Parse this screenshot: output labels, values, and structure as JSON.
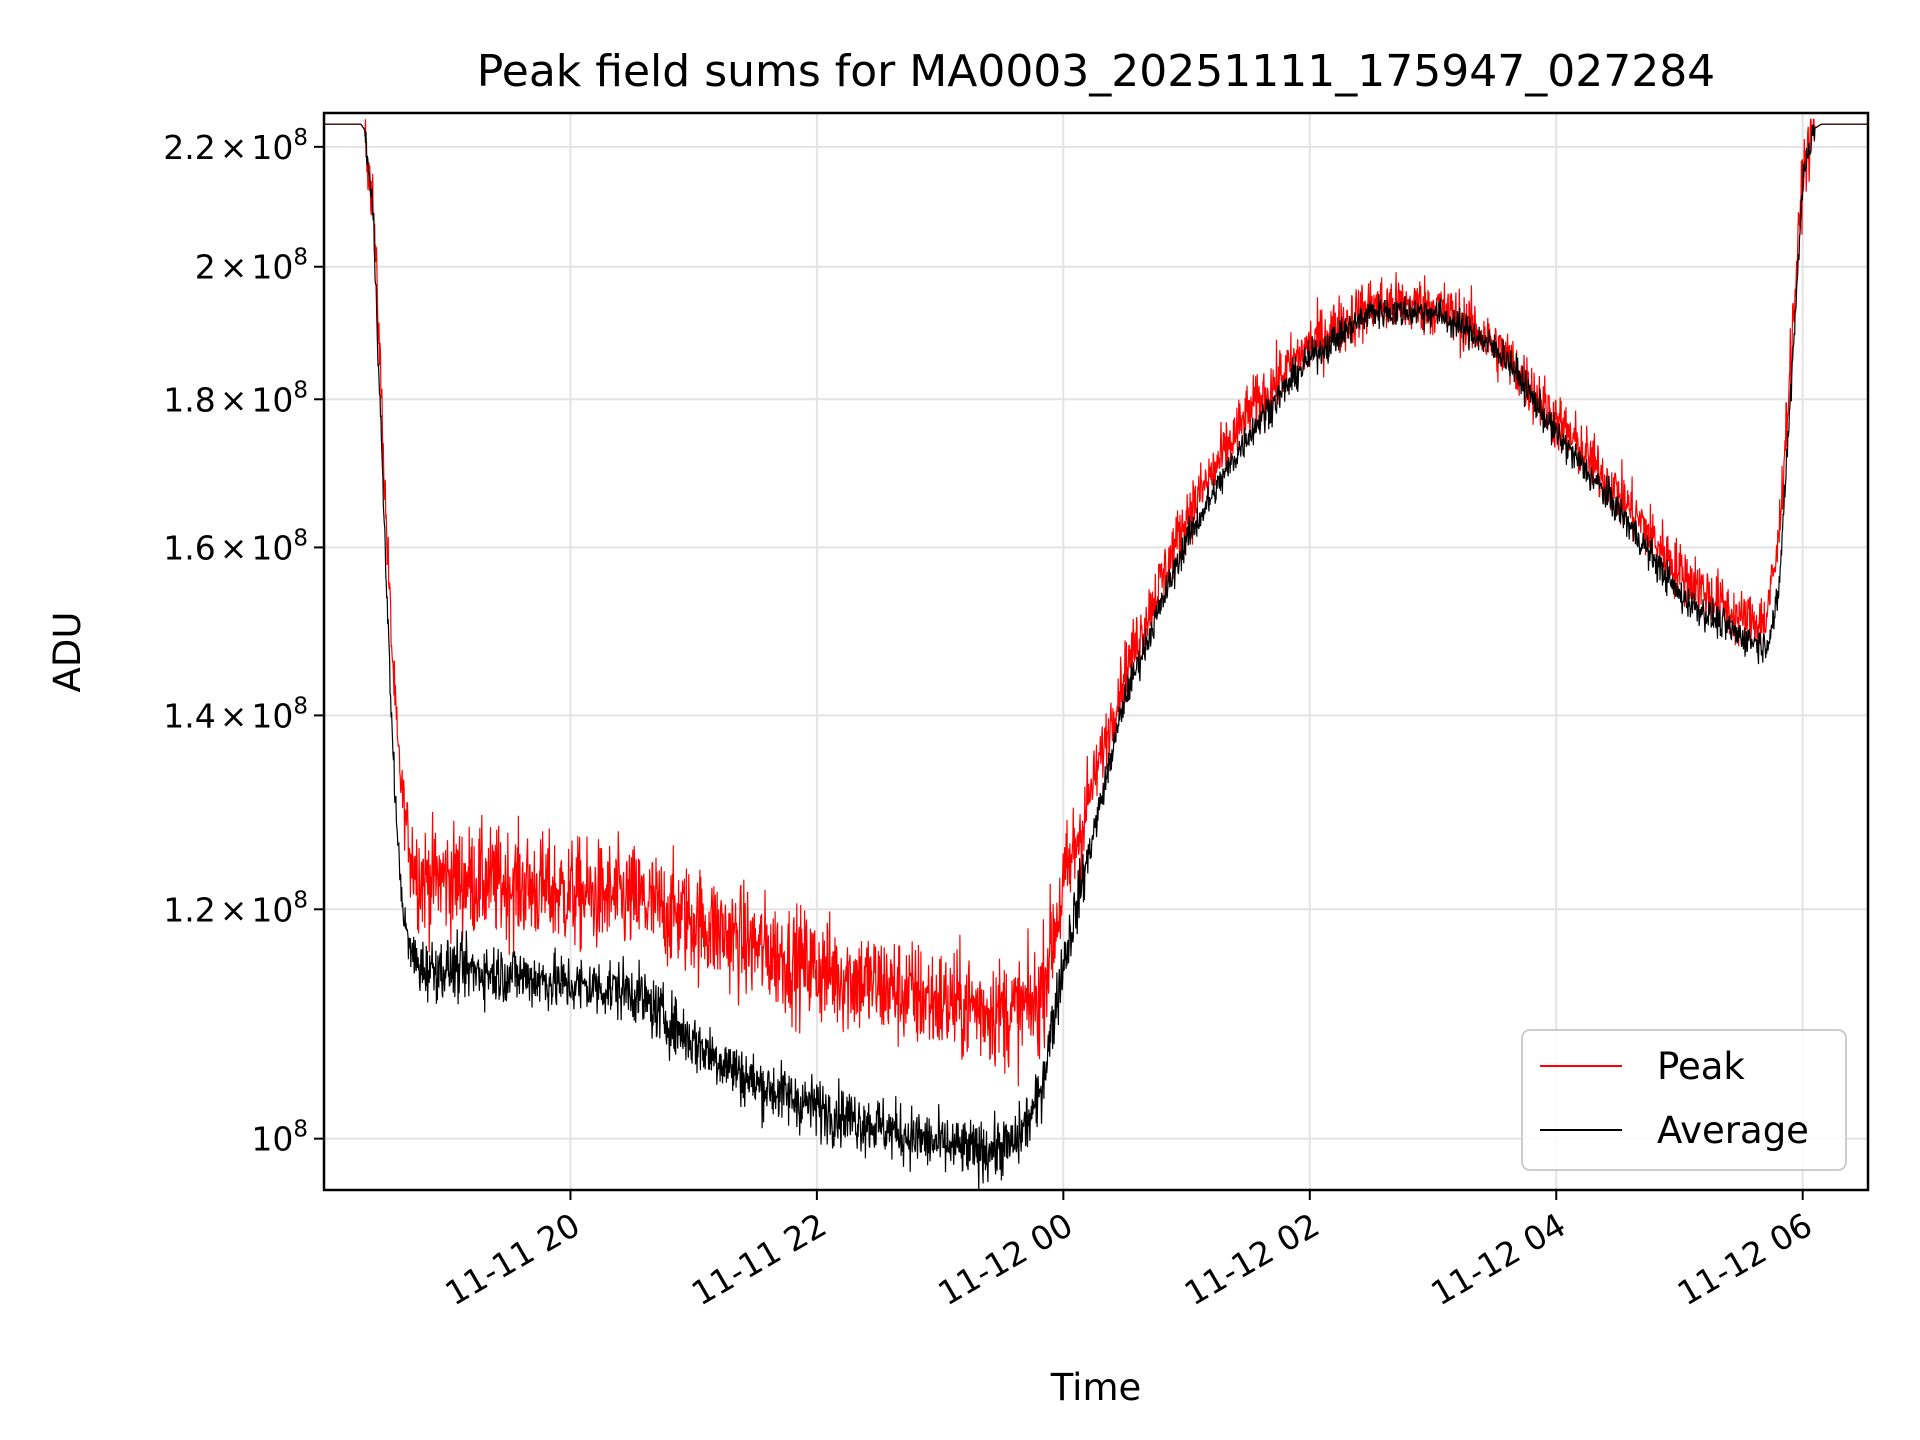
{
  "chart_data": {
    "type": "line",
    "title": "Peak field sums for MA0003_20251111_175947_027284",
    "xlabel": "Time",
    "ylabel": "ADU",
    "yscale": "log",
    "grid": true,
    "legend_position": "lower-right",
    "x_unit": "hours since 2025-11-11 00:00",
    "xlim": [
      18.0,
      30.53
    ],
    "ylim": [
      96000000,
      226000000
    ],
    "x_ticks": [
      {
        "value": 20,
        "label": "11-11 20"
      },
      {
        "value": 22,
        "label": "11-11 22"
      },
      {
        "value": 24,
        "label": "11-12 00"
      },
      {
        "value": 26,
        "label": "11-12 02"
      },
      {
        "value": 28,
        "label": "11-12 04"
      },
      {
        "value": 30,
        "label": "11-12 06"
      }
    ],
    "y_ticks": [
      {
        "value": 100000000,
        "mantissa": "",
        "exponent": "8"
      },
      {
        "value": 120000000,
        "mantissa": "1.2",
        "exponent": "8"
      },
      {
        "value": 140000000,
        "mantissa": "1.4",
        "exponent": "8"
      },
      {
        "value": 160000000,
        "mantissa": "1.6",
        "exponent": "8"
      },
      {
        "value": 180000000,
        "mantissa": "1.8",
        "exponent": "8"
      },
      {
        "value": 200000000,
        "mantissa": "2",
        "exponent": "8"
      },
      {
        "value": 220000000,
        "mantissa": "2.2",
        "exponent": "8"
      }
    ],
    "tick_times_sign": "×",
    "tick_base": "10",
    "series": [
      {
        "name": "Peak",
        "color": "#ff0000",
        "noise": 0.022,
        "x": [
          18.0,
          18.3,
          18.33,
          18.4,
          18.45,
          18.5,
          18.55,
          18.6,
          18.65,
          18.7,
          18.75,
          18.8,
          19.0,
          19.5,
          20.0,
          20.5,
          21.0,
          21.5,
          22.0,
          22.5,
          23.0,
          23.3,
          23.6,
          23.8,
          24.0,
          24.5,
          25.0,
          25.5,
          26.0,
          26.5,
          27.0,
          27.3,
          27.6,
          28.0,
          28.5,
          29.0,
          29.5,
          29.7,
          29.8,
          29.9,
          30.0,
          30.08,
          30.15,
          30.53
        ],
        "y": [
          224000000,
          224000000,
          223000000,
          210000000,
          188000000,
          165000000,
          148000000,
          136000000,
          130000000,
          126000000,
          124000000,
          123000000,
          123000000,
          122500000,
          121500000,
          121000000,
          119000000,
          116500000,
          114500000,
          113000000,
          111500000,
          111000000,
          110500000,
          111500000,
          122000000,
          145000000,
          164000000,
          178000000,
          188000000,
          194000000,
          194000000,
          191000000,
          186000000,
          177000000,
          167000000,
          157000000,
          151000000,
          151000000,
          160000000,
          185000000,
          215000000,
          223000000,
          224000000,
          224000000
        ]
      },
      {
        "name": "Average",
        "color": "#000000",
        "noise": 0.012,
        "x": [
          18.0,
          18.3,
          18.33,
          18.4,
          18.45,
          18.5,
          18.55,
          18.6,
          18.65,
          18.7,
          18.75,
          18.8,
          19.0,
          19.5,
          20.0,
          20.5,
          21.0,
          21.5,
          22.0,
          22.5,
          23.0,
          23.3,
          23.6,
          23.8,
          24.0,
          24.5,
          25.0,
          25.5,
          26.0,
          26.5,
          27.0,
          27.3,
          27.6,
          28.0,
          28.5,
          29.0,
          29.5,
          29.7,
          29.8,
          29.9,
          30.0,
          30.08,
          30.15,
          30.53
        ],
        "y": [
          224000000,
          224000000,
          223000000,
          208000000,
          182000000,
          158000000,
          139000000,
          126000000,
          119000000,
          116000000,
          115000000,
          114500000,
          114500000,
          114000000,
          113000000,
          112500000,
          108000000,
          104500000,
          102500000,
          101000000,
          99500000,
          99000000,
          99500000,
          103000000,
          115000000,
          142000000,
          161000000,
          175000000,
          186000000,
          193000000,
          193000000,
          190000000,
          186000000,
          175000000,
          165000000,
          154000000,
          149000000,
          148000000,
          153000000,
          180000000,
          214000000,
          223000000,
          224000000,
          224000000
        ]
      }
    ]
  }
}
